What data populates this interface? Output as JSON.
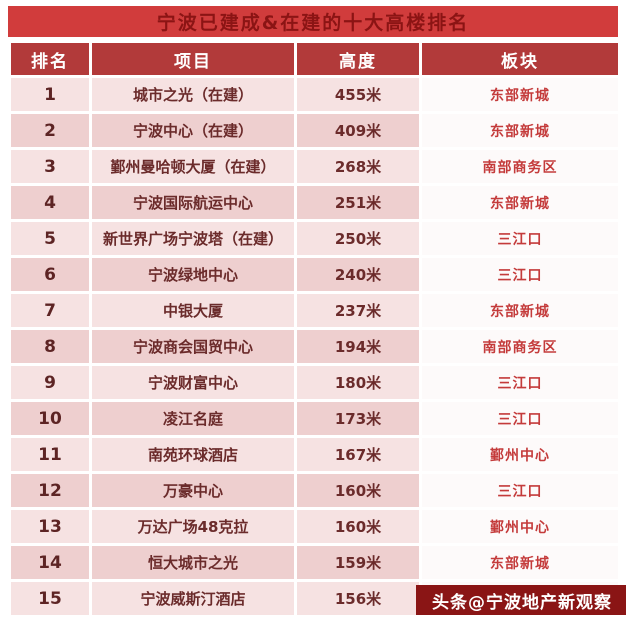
{
  "chart_data": {
    "type": "table",
    "title": "宁波已建成&在建的十大高楼排名",
    "columns": [
      "排名",
      "项目",
      "高度",
      "板块"
    ],
    "rows": [
      [
        "1",
        "城市之光（在建）",
        "455米",
        "东部新城"
      ],
      [
        "2",
        "宁波中心（在建）",
        "409米",
        "东部新城"
      ],
      [
        "3",
        "鄞州曼哈顿大厦（在建）",
        "268米",
        "南部商务区"
      ],
      [
        "4",
        "宁波国际航运中心",
        "251米",
        "东部新城"
      ],
      [
        "5",
        "新世界广场宁波塔（在建）",
        "250米",
        "三江口"
      ],
      [
        "6",
        "宁波绿地中心",
        "240米",
        "三江口"
      ],
      [
        "7",
        "中银大厦",
        "237米",
        "东部新城"
      ],
      [
        "8",
        "宁波商会国贸中心",
        "194米",
        "南部商务区"
      ],
      [
        "9",
        "宁波财富中心",
        "180米",
        "三江口"
      ],
      [
        "10",
        "凌江名庭",
        "173米",
        "三江口"
      ],
      [
        "11",
        "南苑环球酒店",
        "167米",
        "鄞州中心"
      ],
      [
        "12",
        "万豪中心",
        "160米",
        "三江口"
      ],
      [
        "13",
        "万达广场48克拉",
        "160米",
        "鄞州中心"
      ],
      [
        "14",
        "恒大城市之光",
        "159米",
        "东部新城"
      ],
      [
        "15",
        "宁波威斯汀酒店",
        "156米",
        "三江口"
      ]
    ]
  },
  "watermark": {
    "text": "头条@宁波地产新观察"
  },
  "colors": {
    "banner_bg": "#d13c3c",
    "banner_text": "#8b1414",
    "header_bg": "#b23a3a",
    "header_text": "#ffffff",
    "row_light_bg": "#f6e2e2",
    "row_dark_bg": "#eecfcf",
    "district_bg": "#fdfafa",
    "district_text": "#c43b3b",
    "cell_text": "#6b2b2b",
    "watermark_bg": "#8a1515",
    "watermark_text": "#ffffff"
  }
}
